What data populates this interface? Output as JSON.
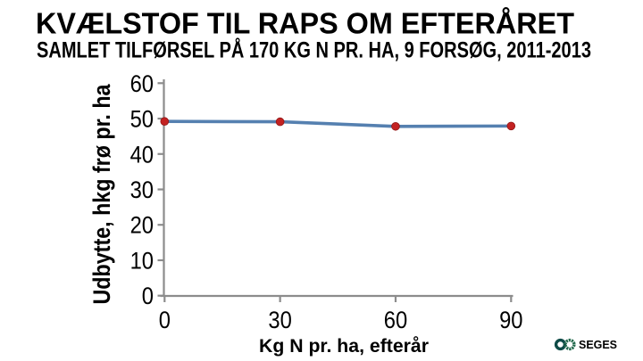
{
  "slide": {
    "title": "KVÆLSTOF TIL RAPS OM EFTERÅRET",
    "subtitle": "SAMLET TILFØRSEL PÅ 170 KG N PR. HA, 9 FORSØG, 2011-2013"
  },
  "chart_data": {
    "type": "line",
    "title": "",
    "x": [
      0,
      30,
      60,
      90
    ],
    "series": [
      {
        "name": "Udbytte",
        "values": [
          49.2,
          49.1,
          47.8,
          47.9
        ]
      }
    ],
    "xlabel": "Kg N pr. ha, efterår",
    "ylabel": "Udbytte, hkg frø pr. ha",
    "xlim": [
      0,
      90
    ],
    "ylim": [
      0,
      60
    ],
    "xticks": [
      0,
      30,
      60,
      90
    ],
    "yticks": [
      0,
      10,
      20,
      30,
      40,
      50,
      60
    ],
    "grid": false,
    "legend": false,
    "marker_shape": "circle"
  },
  "footer": {
    "logo_text": "SEGES"
  },
  "colors": {
    "line": "#5580B0",
    "marker": "#C32222",
    "marker_edge": "#8F1818",
    "axis": "#8C8C8C",
    "text": "#000000",
    "logo_ring_left": "#0E4B47",
    "logo_ring_right": "#256B4F",
    "logo_text": "#175748"
  }
}
